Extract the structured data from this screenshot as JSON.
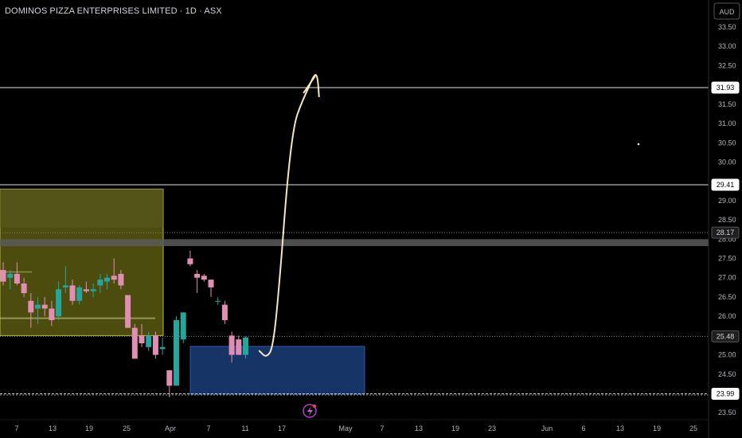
{
  "header": {
    "title": "DOMINOS PIZZA ENTERPRISES LIMITED · 1D · ASX",
    "currency": "AUD"
  },
  "colors": {
    "background": "#000000",
    "up_candle": "#26a69a",
    "down_candle": "#e08fb2",
    "support_zone": "#1a3a72",
    "range_zone": "#8a8a1a",
    "drawing_line": "#f5e6c0",
    "level_line": "#e0e0e0"
  },
  "chart_data": {
    "type": "candlestick",
    "title": "DOMINOS PIZZA ENTERPRISES LIMITED · 1D · ASX",
    "y_unit": "AUD",
    "ylim": [
      23.45,
      33.8
    ],
    "y_ticks": [
      "23.50",
      "24.00",
      "24.50",
      "25.00",
      "25.50",
      "26.00",
      "26.50",
      "27.00",
      "27.50",
      "28.00",
      "28.50",
      "29.00",
      "29.50",
      "30.00",
      "30.50",
      "31.00",
      "31.50",
      "32.00",
      "32.50",
      "33.00",
      "33.50"
    ],
    "x_ticks": [
      "7",
      "13",
      "19",
      "25",
      "Apr",
      "7",
      "11",
      "17",
      "May",
      "7",
      "13",
      "19",
      "23",
      "Jun",
      "6",
      "13",
      "19",
      "25"
    ],
    "price_tags": [
      "31.93",
      "29.41",
      "28.17",
      "25.48",
      "23.99"
    ],
    "levels": [
      31.93,
      29.41,
      28.17,
      25.48,
      23.99
    ],
    "candles": [
      {
        "t": 0,
        "o": 27.2,
        "h": 27.4,
        "l": 26.8,
        "c": 26.9
      },
      {
        "t": 1,
        "o": 27.0,
        "h": 27.2,
        "l": 26.7,
        "c": 27.1
      },
      {
        "t": 2,
        "o": 27.1,
        "h": 27.4,
        "l": 26.8,
        "c": 26.85
      },
      {
        "t": 3,
        "o": 26.85,
        "h": 27.0,
        "l": 26.5,
        "c": 26.6
      },
      {
        "t": 4,
        "o": 26.4,
        "h": 26.6,
        "l": 25.7,
        "c": 26.1
      },
      {
        "t": 5,
        "o": 26.2,
        "h": 26.5,
        "l": 25.8,
        "c": 26.3
      },
      {
        "t": 6,
        "o": 26.3,
        "h": 26.5,
        "l": 26.0,
        "c": 26.2
      },
      {
        "t": 7,
        "o": 26.2,
        "h": 26.4,
        "l": 25.75,
        "c": 25.9
      },
      {
        "t": 8,
        "o": 26.0,
        "h": 26.9,
        "l": 25.9,
        "c": 26.7
      },
      {
        "t": 9,
        "o": 26.75,
        "h": 27.3,
        "l": 26.6,
        "c": 26.8
      },
      {
        "t": 10,
        "o": 26.8,
        "h": 26.95,
        "l": 26.3,
        "c": 26.4
      },
      {
        "t": 11,
        "o": 26.4,
        "h": 26.8,
        "l": 26.3,
        "c": 26.75
      },
      {
        "t": 12,
        "o": 26.7,
        "h": 26.9,
        "l": 26.6,
        "c": 26.65
      },
      {
        "t": 13,
        "o": 26.65,
        "h": 26.85,
        "l": 26.5,
        "c": 26.7
      },
      {
        "t": 14,
        "o": 26.8,
        "h": 27.1,
        "l": 26.6,
        "c": 26.95
      },
      {
        "t": 15,
        "o": 26.9,
        "h": 27.1,
        "l": 26.7,
        "c": 27.0
      },
      {
        "t": 16,
        "o": 27.05,
        "h": 27.5,
        "l": 26.85,
        "c": 26.95
      },
      {
        "t": 17,
        "o": 27.1,
        "h": 27.2,
        "l": 26.7,
        "c": 26.8
      },
      {
        "t": 18,
        "o": 26.55,
        "h": 26.55,
        "l": 25.7,
        "c": 25.7
      },
      {
        "t": 19,
        "o": 25.7,
        "h": 25.8,
        "l": 24.9,
        "c": 24.9
      },
      {
        "t": 20,
        "o": 25.5,
        "h": 25.8,
        "l": 25.2,
        "c": 25.3
      },
      {
        "t": 21,
        "o": 25.2,
        "h": 25.6,
        "l": 25.1,
        "c": 25.5
      },
      {
        "t": 22,
        "o": 25.5,
        "h": 25.6,
        "l": 24.9,
        "c": 25.0
      },
      {
        "t": 23,
        "o": 25.15,
        "h": 25.45,
        "l": 25.0,
        "c": 25.2
      },
      {
        "t": 24,
        "o": 24.6,
        "h": 24.6,
        "l": 23.9,
        "c": 24.2
      },
      {
        "t": 25,
        "o": 24.2,
        "h": 26.0,
        "l": 24.2,
        "c": 25.9
      },
      {
        "t": 26,
        "o": 25.4,
        "h": 26.1,
        "l": 25.3,
        "c": 26.1
      },
      {
        "t": 27,
        "o": 27.5,
        "h": 27.7,
        "l": 27.3,
        "c": 27.35
      },
      {
        "t": 28,
        "o": 27.1,
        "h": 27.2,
        "l": 26.6,
        "c": 27.0
      },
      {
        "t": 29,
        "o": 27.05,
        "h": 27.1,
        "l": 26.9,
        "c": 26.95
      },
      {
        "t": 30,
        "o": 26.95,
        "h": 26.95,
        "l": 26.5,
        "c": 26.75
      },
      {
        "t": 31,
        "o": 26.4,
        "h": 26.5,
        "l": 26.3,
        "c": 26.4
      },
      {
        "t": 32,
        "o": 26.3,
        "h": 26.4,
        "l": 25.8,
        "c": 25.9
      },
      {
        "t": 33,
        "o": 25.5,
        "h": 25.6,
        "l": 24.8,
        "c": 25.0
      },
      {
        "t": 34,
        "o": 25.4,
        "h": 25.5,
        "l": 25.0,
        "c": 25.0
      },
      {
        "t": 35,
        "o": 25.0,
        "h": 25.48,
        "l": 24.9,
        "c": 25.45
      }
    ],
    "zones": [
      {
        "name": "range",
        "t0": -1,
        "t1": 18,
        "y0": 25.5,
        "y1": 29.3
      },
      {
        "name": "support",
        "t0": 23,
        "t1": 42,
        "y0": 23.98,
        "y1": 25.22
      }
    ],
    "grey_band": {
      "y0": 27.82,
      "y1": 28.0
    },
    "projection": [
      [
        37,
        25.1
      ],
      [
        38,
        24.92
      ],
      [
        39,
        25.2
      ],
      [
        40,
        27.1
      ],
      [
        41,
        29.5
      ],
      [
        42,
        31.0
      ],
      [
        43,
        31.5
      ],
      [
        44,
        31.9
      ],
      [
        45,
        32.3
      ],
      [
        45.4,
        32.2
      ],
      [
        45.6,
        31.7
      ]
    ],
    "projection_hook": [
      [
        43.4,
        31.8
      ],
      [
        45.0,
        32.22
      ]
    ]
  }
}
